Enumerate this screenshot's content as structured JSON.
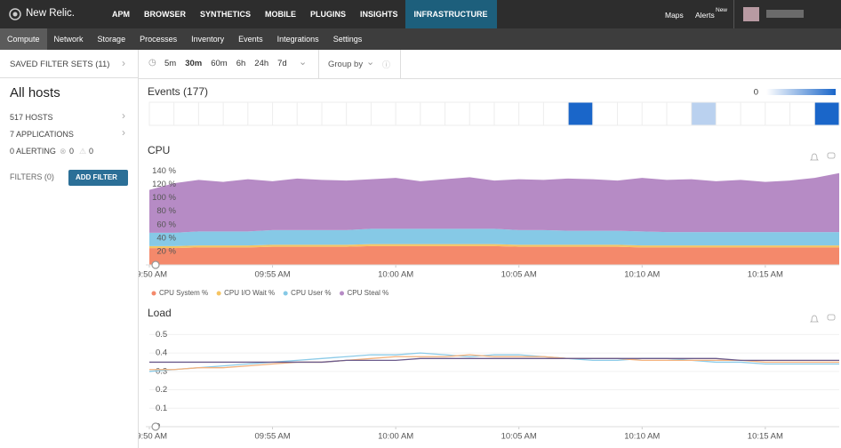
{
  "nav": {
    "brand": "New Relic.",
    "items": [
      "APM",
      "BROWSER",
      "SYNTHETICS",
      "MOBILE",
      "PLUGINS",
      "INSIGHTS",
      "INFRASTRUCTURE"
    ],
    "right": [
      "Maps",
      "Alerts"
    ],
    "alerts_badge": "New"
  },
  "subnav": [
    "Compute",
    "Network",
    "Storage",
    "Processes",
    "Inventory",
    "Events",
    "Integrations",
    "Settings"
  ],
  "sidebar": {
    "saved": "SAVED FILTER SETS (11)",
    "title": "All hosts",
    "hosts": "517 HOSTS",
    "apps": "7 APPLICATIONS",
    "alerting": "0 ALERTING",
    "critical": "0",
    "warning": "0",
    "filters": "FILTERS (0)",
    "add_filter": "ADD FILTER"
  },
  "toolbar": {
    "ranges": [
      "5m",
      "30m",
      "60m",
      "6h",
      "24h",
      "7d"
    ],
    "group_by": "Group by"
  },
  "chart_data": [
    {
      "type": "heatmap",
      "title": "Events (177)",
      "legend_min": "0",
      "color": "#1a66c9",
      "values": [
        0,
        0,
        0,
        0,
        0,
        0,
        0,
        0,
        0,
        0,
        0,
        0,
        0,
        0,
        0,
        0,
        0,
        10,
        0,
        0,
        0,
        0,
        3,
        0,
        0,
        0,
        0,
        10
      ]
    },
    {
      "type": "area",
      "title": "CPU",
      "stacked": true,
      "x": [
        "09:50",
        "09:51",
        "09:52",
        "09:53",
        "09:54",
        "09:55",
        "09:56",
        "09:57",
        "09:58",
        "09:59",
        "10:00",
        "10:01",
        "10:02",
        "10:03",
        "10:04",
        "10:05",
        "10:06",
        "10:07",
        "10:08",
        "10:09",
        "10:10",
        "10:11",
        "10:12",
        "10:13",
        "10:14",
        "10:15",
        "10:16",
        "10:17",
        "10:18"
      ],
      "xticks": [
        {
          "value": "09:50",
          "label": "09:50 AM"
        },
        {
          "value": "09:55",
          "label": "09:55 AM"
        },
        {
          "value": "10:00",
          "label": "10:00 AM"
        },
        {
          "value": "10:05",
          "label": "10:05 AM"
        },
        {
          "value": "10:10",
          "label": "10:10 AM"
        },
        {
          "value": "10:15",
          "label": "10:15 AM"
        }
      ],
      "ylim": [
        0,
        150
      ],
      "yticks": [
        {
          "value": 20,
          "label": "20 %"
        },
        {
          "value": 40,
          "label": "40 %"
        },
        {
          "value": 60,
          "label": "60 %"
        },
        {
          "value": 80,
          "label": "80 %"
        },
        {
          "value": 100,
          "label": "100 %"
        },
        {
          "value": 120,
          "label": "120 %"
        },
        {
          "value": 140,
          "label": "140 %"
        }
      ],
      "series": [
        {
          "name": "CPU System %",
          "color": "#f4896b",
          "values": [
            25,
            25,
            26,
            26,
            26,
            27,
            27,
            27,
            27,
            28,
            28,
            28,
            28,
            28,
            28,
            27,
            27,
            27,
            27,
            27,
            26,
            26,
            26,
            26,
            26,
            26,
            26,
            26,
            26
          ]
        },
        {
          "name": "CPU I/O Wait %",
          "color": "#f5c463",
          "values": [
            3,
            3,
            3,
            3,
            3,
            3,
            3,
            3,
            3,
            3,
            3,
            3,
            3,
            3,
            3,
            3,
            3,
            3,
            3,
            3,
            3,
            3,
            3,
            3,
            3,
            3,
            3,
            3,
            3
          ]
        },
        {
          "name": "CPU User %",
          "color": "#86c9e6",
          "values": [
            20,
            20,
            21,
            21,
            21,
            22,
            22,
            22,
            22,
            23,
            23,
            23,
            23,
            23,
            23,
            22,
            22,
            21,
            21,
            21,
            21,
            20,
            20,
            20,
            20,
            20,
            20,
            20,
            20
          ]
        },
        {
          "name": "CPU Steal %",
          "color": "#b68bc5",
          "values": [
            64,
            74,
            77,
            74,
            78,
            73,
            77,
            75,
            74,
            74,
            76,
            71,
            74,
            77,
            72,
            76,
            75,
            78,
            77,
            75,
            80,
            78,
            79,
            76,
            78,
            75,
            77,
            81,
            88
          ]
        }
      ]
    },
    {
      "type": "line",
      "title": "Load",
      "grid": true,
      "x": [
        "09:50",
        "09:51",
        "09:52",
        "09:53",
        "09:54",
        "09:55",
        "09:56",
        "09:57",
        "09:58",
        "09:59",
        "10:00",
        "10:01",
        "10:02",
        "10:03",
        "10:04",
        "10:05",
        "10:06",
        "10:07",
        "10:08",
        "10:09",
        "10:10",
        "10:11",
        "10:12",
        "10:13",
        "10:14",
        "10:15",
        "10:16",
        "10:17",
        "10:18"
      ],
      "xticks": [
        {
          "value": "09:50",
          "label": "09:50 AM"
        },
        {
          "value": "09:55",
          "label": "09:55 AM"
        },
        {
          "value": "10:00",
          "label": "10:00 AM"
        },
        {
          "value": "10:05",
          "label": "10:05 AM"
        },
        {
          "value": "10:10",
          "label": "10:10 AM"
        },
        {
          "value": "10:15",
          "label": "10:15 AM"
        }
      ],
      "ylim": [
        0,
        0.55
      ],
      "yticks": [
        0,
        0.1,
        0.2,
        0.3,
        0.4,
        0.5
      ],
      "series": [
        {
          "color": "#8ccbe8",
          "values": [
            0.3,
            0.31,
            0.32,
            0.33,
            0.34,
            0.35,
            0.36,
            0.37,
            0.38,
            0.39,
            0.39,
            0.4,
            0.39,
            0.38,
            0.39,
            0.39,
            0.38,
            0.37,
            0.36,
            0.36,
            0.37,
            0.37,
            0.36,
            0.35,
            0.35,
            0.34,
            0.34,
            0.34,
            0.34
          ]
        },
        {
          "color": "#f4b37e",
          "values": [
            0.31,
            0.31,
            0.32,
            0.32,
            0.33,
            0.34,
            0.35,
            0.35,
            0.36,
            0.37,
            0.38,
            0.38,
            0.38,
            0.39,
            0.38,
            0.38,
            0.38,
            0.37,
            0.37,
            0.37,
            0.36,
            0.36,
            0.36,
            0.36,
            0.36,
            0.35,
            0.35,
            0.35,
            0.35
          ]
        },
        {
          "color": "#6b5b8c",
          "values": [
            0.35,
            0.35,
            0.35,
            0.35,
            0.35,
            0.35,
            0.35,
            0.35,
            0.36,
            0.36,
            0.36,
            0.37,
            0.37,
            0.37,
            0.37,
            0.37,
            0.37,
            0.37,
            0.37,
            0.37,
            0.37,
            0.37,
            0.37,
            0.37,
            0.36,
            0.36,
            0.36,
            0.36,
            0.36
          ]
        }
      ]
    }
  ]
}
